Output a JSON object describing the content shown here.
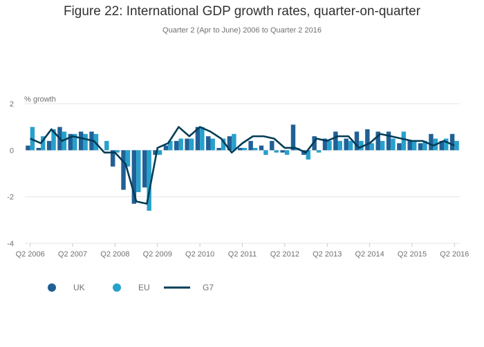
{
  "header": {
    "title": "Figure 22: International GDP growth rates, quarter-on-quarter",
    "subtitle": "Quarter 2 (Apr to June) 2006 to Quarter 2 2016"
  },
  "colors": {
    "uk": "#206095",
    "eu": "#27a0cc",
    "g7": "#003c57",
    "grid": "#e5e5e5",
    "axis_text": "#707071"
  },
  "chart_data": {
    "type": "bar",
    "title": "Figure 22: International GDP growth rates, quarter-on-quarter",
    "subtitle": "Quarter 2 (Apr to June) 2006 to Quarter 2 2016",
    "ylabel": "% growth",
    "xlabel": "",
    "ylim": [
      -4,
      2
    ],
    "yticks": [
      2,
      0,
      -2,
      -4
    ],
    "grid": true,
    "legend_position": "bottom-left",
    "xtick_labels": [
      "Q2 2006",
      "Q2 2007",
      "Q2 2008",
      "Q2 2009",
      "Q2 2010",
      "Q2 2011",
      "Q2 2012",
      "Q2 2013",
      "Q2 2014",
      "Q2 2015",
      "Q2 2016"
    ],
    "categories": [
      "Q2 2006",
      "Q3 2006",
      "Q4 2006",
      "Q1 2007",
      "Q2 2007",
      "Q3 2007",
      "Q4 2007",
      "Q1 2008",
      "Q2 2008",
      "Q3 2008",
      "Q4 2008",
      "Q1 2009",
      "Q2 2009",
      "Q3 2009",
      "Q4 2009",
      "Q1 2010",
      "Q2 2010",
      "Q3 2010",
      "Q4 2010",
      "Q1 2011",
      "Q2 2011",
      "Q3 2011",
      "Q4 2011",
      "Q1 2012",
      "Q2 2012",
      "Q3 2012",
      "Q4 2012",
      "Q1 2013",
      "Q2 2013",
      "Q3 2013",
      "Q4 2013",
      "Q1 2014",
      "Q2 2014",
      "Q3 2014",
      "Q4 2014",
      "Q1 2015",
      "Q2 2015",
      "Q3 2015",
      "Q4 2015",
      "Q1 2016",
      "Q2 2016"
    ],
    "series": [
      {
        "name": "UK",
        "kind": "bar",
        "values": [
          0.2,
          0.1,
          0.4,
          1.0,
          0.7,
          0.8,
          0.8,
          0.0,
          -0.7,
          -1.7,
          -2.3,
          -1.6,
          -0.2,
          0.2,
          0.4,
          0.5,
          1.0,
          0.6,
          0.1,
          0.6,
          0.1,
          0.4,
          0.2,
          0.4,
          -0.1,
          1.1,
          -0.2,
          0.6,
          0.5,
          0.8,
          0.5,
          0.8,
          0.9,
          0.8,
          0.8,
          0.3,
          0.4,
          0.3,
          0.7,
          0.4,
          0.7
        ]
      },
      {
        "name": "EU",
        "kind": "bar",
        "values": [
          1.0,
          0.6,
          0.9,
          0.8,
          0.7,
          0.7,
          0.7,
          0.4,
          -0.1,
          -0.7,
          -1.8,
          -2.6,
          -0.2,
          0.4,
          0.5,
          0.5,
          1.0,
          0.5,
          0.5,
          0.7,
          0.1,
          0.1,
          -0.2,
          -0.1,
          -0.2,
          0.1,
          -0.4,
          -0.1,
          0.4,
          0.4,
          0.4,
          0.4,
          0.3,
          0.4,
          0.5,
          0.8,
          0.4,
          0.4,
          0.5,
          0.5,
          0.4
        ]
      },
      {
        "name": "G7",
        "kind": "line",
        "values": [
          0.5,
          0.3,
          0.9,
          0.4,
          0.6,
          0.5,
          0.4,
          -0.1,
          -0.1,
          -0.6,
          -2.2,
          -2.3,
          0.1,
          0.3,
          1.0,
          0.6,
          1.0,
          0.8,
          0.5,
          -0.1,
          0.3,
          0.6,
          0.6,
          0.5,
          0.1,
          0.1,
          -0.1,
          0.5,
          0.4,
          0.6,
          0.6,
          0.1,
          0.3,
          0.7,
          0.6,
          0.5,
          0.4,
          0.4,
          0.2,
          0.4,
          0.2
        ]
      }
    ]
  }
}
